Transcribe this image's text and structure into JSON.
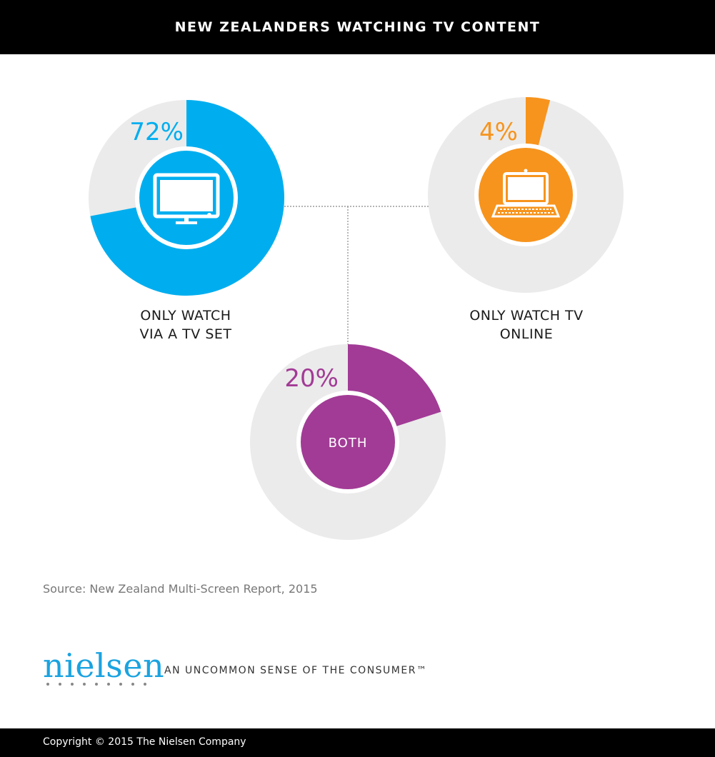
{
  "header": {
    "title": "NEW ZEALANDERS WATCHING TV CONTENT"
  },
  "chart_data": {
    "type": "pie",
    "title": "NEW ZEALANDERS WATCHING TV CONTENT",
    "slices": [
      {
        "label": "ONLY WATCH VIA A TV SET",
        "label_lines": [
          "ONLY WATCH",
          "VIA A TV SET"
        ],
        "value": 72,
        "value_label": "72%",
        "color": "#00aeef",
        "icon": "tv-icon"
      },
      {
        "label": "ONLY WATCH TV ONLINE",
        "label_lines": [
          "ONLY WATCH TV",
          "ONLINE"
        ],
        "value": 4,
        "value_label": "4%",
        "color": "#f7941d",
        "icon": "laptop-icon"
      },
      {
        "label": "BOTH",
        "center_text": "BOTH",
        "label_lines": [],
        "value": 20,
        "value_label": "20%",
        "color": "#a23b96",
        "icon": ""
      }
    ],
    "track_color": "#ebebeb",
    "connector_color": "#888888"
  },
  "source": "Source: New Zealand Multi-Screen Report, 2015",
  "brand": {
    "logo": "nielsen",
    "tagline": "AN UNCOMMON SENSE OF THE CONSUMER™",
    "color": "#1aa3e0"
  },
  "footer": {
    "copyright": "Copyright © 2015 The Nielsen Company"
  }
}
